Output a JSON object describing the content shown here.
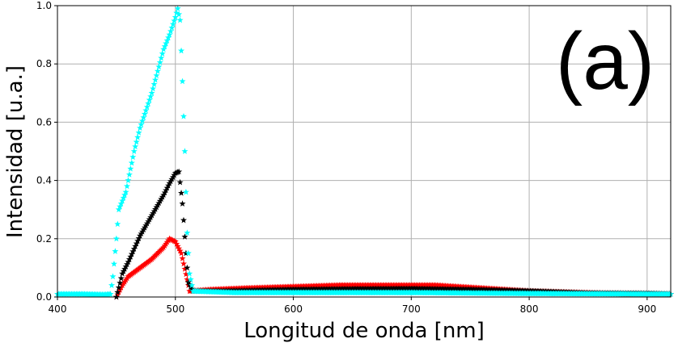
{
  "chart_data": {
    "type": "scatter",
    "title": "",
    "panel_label": "(a)",
    "xlabel": "Longitud de onda [nm]",
    "ylabel": "Intensidad [u.a.]",
    "xlim": [
      400,
      920
    ],
    "ylim": [
      0,
      1.0
    ],
    "x_ticks": [
      400,
      500,
      600,
      700,
      800,
      900
    ],
    "y_ticks": [
      0.0,
      0.2,
      0.4,
      0.6,
      0.8,
      1.0
    ],
    "x_tick_labels": [
      "400",
      "500",
      "600",
      "700",
      "800",
      "900"
    ],
    "y_tick_labels": [
      "0.0",
      "0.2",
      "0.4",
      "0.6",
      "0.8",
      "1.0"
    ],
    "grid": true,
    "legend": false,
    "series": [
      {
        "color": "#ff0000",
        "marker": "star",
        "points": [
          [
            450,
            0.0
          ],
          [
            455,
            0.04
          ],
          [
            460,
            0.07
          ],
          [
            470,
            0.1
          ],
          [
            480,
            0.13
          ],
          [
            490,
            0.17
          ],
          [
            495,
            0.2
          ],
          [
            500,
            0.19
          ],
          [
            505,
            0.15
          ],
          [
            510,
            0.06
          ],
          [
            512,
            0.02
          ],
          [
            530,
            0.025
          ],
          [
            560,
            0.03
          ],
          [
            600,
            0.035
          ],
          [
            640,
            0.04
          ],
          [
            680,
            0.04
          ],
          [
            720,
            0.04
          ],
          [
            760,
            0.03
          ],
          [
            800,
            0.02
          ],
          [
            840,
            0.015
          ],
          [
            880,
            0.01
          ],
          [
            920,
            0.01
          ]
        ]
      },
      {
        "color": "#000000",
        "marker": "star",
        "points": [
          [
            450,
            0.0
          ],
          [
            455,
            0.08
          ],
          [
            460,
            0.12
          ],
          [
            470,
            0.21
          ],
          [
            480,
            0.28
          ],
          [
            490,
            0.35
          ],
          [
            495,
            0.39
          ],
          [
            500,
            0.425
          ],
          [
            503,
            0.43
          ],
          [
            506,
            0.32
          ],
          [
            509,
            0.15
          ],
          [
            511,
            0.05
          ],
          [
            515,
            0.02
          ],
          [
            540,
            0.02
          ],
          [
            600,
            0.025
          ],
          [
            650,
            0.027
          ],
          [
            700,
            0.028
          ],
          [
            750,
            0.025
          ],
          [
            800,
            0.02
          ],
          [
            850,
            0.013
          ],
          [
            900,
            0.012
          ],
          [
            920,
            0.01
          ]
        ]
      },
      {
        "color": "#00ffff",
        "marker": "star",
        "points": [
          [
            400,
            0.01
          ],
          [
            420,
            0.01
          ],
          [
            440,
            0.008
          ],
          [
            445,
            0.01
          ],
          [
            447,
            0.07
          ],
          [
            450,
            0.2
          ],
          [
            452,
            0.3
          ],
          [
            458,
            0.36
          ],
          [
            465,
            0.5
          ],
          [
            470,
            0.58
          ],
          [
            480,
            0.7
          ],
          [
            490,
            0.85
          ],
          [
            495,
            0.9
          ],
          [
            500,
            0.96
          ],
          [
            502,
            0.99
          ],
          [
            504,
            0.95
          ],
          [
            506,
            0.74
          ],
          [
            508,
            0.5
          ],
          [
            510,
            0.22
          ],
          [
            512,
            0.08
          ],
          [
            515,
            0.02
          ],
          [
            550,
            0.015
          ],
          [
            600,
            0.015
          ],
          [
            700,
            0.015
          ],
          [
            800,
            0.012
          ],
          [
            900,
            0.01
          ],
          [
            920,
            0.01
          ]
        ]
      }
    ]
  }
}
